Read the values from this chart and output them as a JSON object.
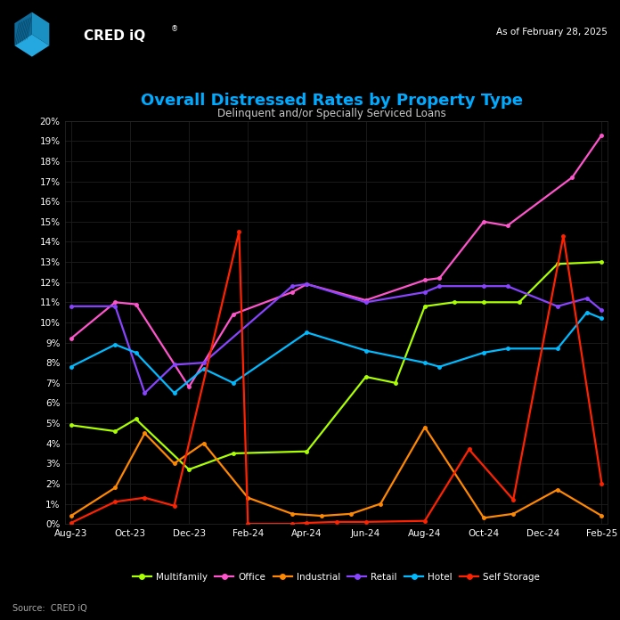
{
  "title": "Overall Distressed Rates by Property Type",
  "subtitle": "Delinquent and/or Specially Serviced Loans",
  "as_of": "As of February 28, 2025",
  "source": "Source:  CRED iQ",
  "background_color": "#000000",
  "grid_color": "#1e1e1e",
  "title_color": "#00aaff",
  "subtitle_color": "#cccccc",
  "x_labels": [
    "Aug-23",
    "Oct-23",
    "Dec-23",
    "Feb-24",
    "Apr-24",
    "Jun-24",
    "Aug-24",
    "Oct-24",
    "Dec-24",
    "Feb-25"
  ],
  "tick_positions": [
    0,
    2,
    4,
    6,
    8,
    10,
    12,
    14,
    16,
    18
  ],
  "series": {
    "Multifamily": {
      "color": "#aaff00",
      "x": [
        0,
        1.5,
        2.2,
        4.0,
        5.5,
        8.0,
        10.0,
        11.0,
        12.0,
        13.0,
        14.0,
        15.2,
        16.5,
        18.0
      ],
      "y": [
        4.9,
        4.6,
        5.2,
        2.7,
        3.5,
        3.6,
        7.3,
        7.0,
        10.8,
        11.0,
        11.0,
        11.0,
        12.9,
        13.0
      ]
    },
    "Office": {
      "color": "#ff55cc",
      "x": [
        0,
        1.5,
        2.2,
        4.0,
        5.5,
        7.5,
        8.0,
        10.0,
        12.0,
        12.5,
        14.0,
        14.8,
        17.0,
        18.0
      ],
      "y": [
        9.2,
        11.0,
        10.9,
        6.8,
        10.4,
        11.5,
        11.9,
        11.1,
        12.1,
        12.2,
        15.0,
        14.8,
        17.2,
        19.3
      ]
    },
    "Industrial": {
      "color": "#ff8800",
      "x": [
        0,
        1.5,
        2.5,
        3.5,
        4.5,
        6.0,
        7.5,
        8.5,
        9.5,
        10.5,
        12.0,
        14.0,
        15.0,
        16.5,
        18.0
      ],
      "y": [
        0.4,
        1.8,
        4.5,
        3.0,
        4.0,
        1.3,
        0.5,
        0.4,
        0.5,
        1.0,
        4.8,
        0.3,
        0.5,
        1.7,
        0.4
      ]
    },
    "Retail": {
      "color": "#8844ff",
      "x": [
        0,
        1.5,
        2.5,
        3.5,
        4.5,
        7.5,
        8.0,
        10.0,
        12.0,
        12.5,
        14.0,
        14.8,
        16.5,
        17.5,
        18.0
      ],
      "y": [
        10.8,
        10.8,
        6.5,
        7.9,
        8.0,
        11.8,
        11.9,
        11.0,
        11.5,
        11.8,
        11.8,
        11.8,
        10.8,
        11.2,
        10.6
      ]
    },
    "Hotel": {
      "color": "#00bbff",
      "x": [
        0,
        1.5,
        2.2,
        3.5,
        4.5,
        5.5,
        8.0,
        10.0,
        12.0,
        12.5,
        14.0,
        14.8,
        16.5,
        17.5,
        18.0
      ],
      "y": [
        7.8,
        8.9,
        8.5,
        6.5,
        7.7,
        7.0,
        9.5,
        8.6,
        8.0,
        7.8,
        8.5,
        8.7,
        8.7,
        10.5,
        10.2
      ]
    },
    "Self Storage": {
      "color": "#ff2200",
      "x": [
        0,
        1.5,
        2.5,
        3.5,
        5.7,
        6.0,
        7.5,
        8.0,
        9.0,
        10.0,
        12.0,
        13.5,
        15.0,
        16.7,
        18.0
      ],
      "y": [
        0.05,
        1.1,
        1.3,
        0.9,
        14.5,
        0.0,
        0.0,
        0.05,
        0.1,
        0.1,
        0.15,
        3.7,
        1.2,
        14.3,
        2.0
      ]
    }
  },
  "ylim": [
    0,
    20
  ],
  "yticks": [
    0,
    1,
    2,
    3,
    4,
    5,
    6,
    7,
    8,
    9,
    10,
    11,
    12,
    13,
    14,
    15,
    16,
    17,
    18,
    19,
    20
  ]
}
